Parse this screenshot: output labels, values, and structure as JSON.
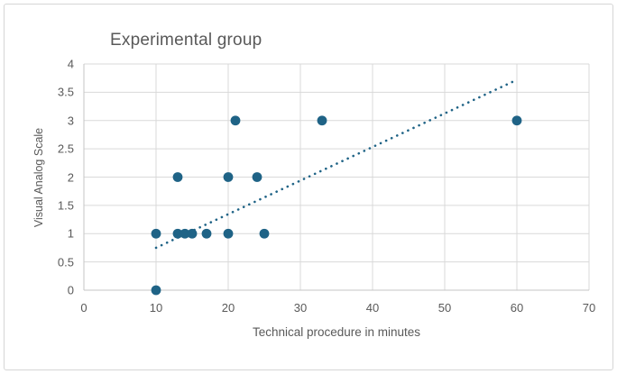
{
  "window": {
    "background": "#ffffff",
    "frame_border_color": "#d5d5d5"
  },
  "colors": {
    "marker": "#1f6386",
    "trendline": "#1f6386",
    "gridline": "#d9d9d9",
    "axis_line": "#c6c6c6",
    "text": "#595959"
  },
  "chart_data": {
    "type": "scatter",
    "title": "Experimental group",
    "xlabel": "Technical procedure in minutes",
    "ylabel": "Visual Analog Scale",
    "xlim": [
      0,
      70
    ],
    "ylim": [
      0,
      4
    ],
    "x_ticks": [
      0,
      10,
      20,
      30,
      40,
      50,
      60,
      70
    ],
    "y_ticks": [
      0,
      0.5,
      1,
      1.5,
      2,
      2.5,
      3,
      3.5,
      4
    ],
    "grid": true,
    "legend": false,
    "series": [
      {
        "name": "Experimental group",
        "marker": "circle",
        "color": "#1f6386",
        "points": [
          [
            10,
            0
          ],
          [
            10,
            1
          ],
          [
            13,
            1
          ],
          [
            14,
            1
          ],
          [
            15,
            1
          ],
          [
            17,
            1
          ],
          [
            20,
            1
          ],
          [
            25,
            1
          ],
          [
            13,
            2
          ],
          [
            20,
            2
          ],
          [
            24,
            2
          ],
          [
            21,
            3
          ],
          [
            33,
            3
          ],
          [
            60,
            3
          ]
        ]
      }
    ],
    "trendline": {
      "style": "dotted",
      "color": "#1f6386",
      "start": {
        "x": 10,
        "y": 0.75
      },
      "end": {
        "x": 60,
        "y": 3.72
      }
    }
  }
}
